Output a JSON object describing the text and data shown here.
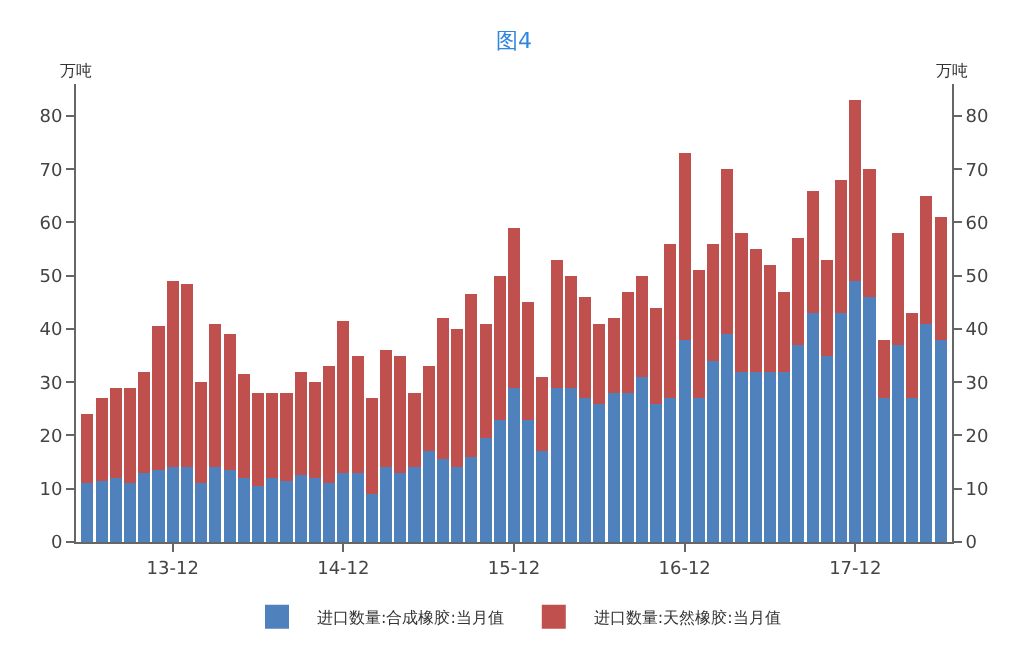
{
  "chart_data": {
    "type": "bar",
    "title": "图4",
    "ylabel": "万吨",
    "y2label": "万吨",
    "categories": [
      null,
      null,
      null,
      null,
      null,
      null,
      "13-12",
      null,
      null,
      null,
      null,
      null,
      null,
      null,
      null,
      null,
      null,
      null,
      "14-12",
      null,
      null,
      null,
      null,
      null,
      null,
      null,
      null,
      null,
      null,
      null,
      "15-12",
      null,
      null,
      null,
      null,
      null,
      null,
      null,
      null,
      null,
      null,
      null,
      "16-12",
      null,
      null,
      null,
      null,
      null,
      null,
      null,
      null,
      null,
      null,
      null,
      "17-12",
      null,
      null,
      null,
      null,
      null,
      null
    ],
    "stacked": true,
    "series": [
      {
        "name": "进口数量:合成橡胶:当月值",
        "color": "#4f81bd",
        "values": [
          11,
          11.5,
          12,
          11,
          13,
          13.5,
          14,
          14,
          11,
          14,
          13.5,
          12,
          10.5,
          12,
          11.5,
          12.5,
          12,
          11,
          13,
          13,
          9,
          14,
          13,
          14,
          17,
          15.5,
          14,
          16,
          19.5,
          23,
          29,
          23,
          17,
          29,
          29,
          27,
          26,
          28,
          28,
          31,
          26,
          27,
          38,
          27,
          34,
          39,
          32,
          32,
          32,
          32,
          37,
          43,
          35,
          43,
          49,
          46,
          27,
          37,
          27,
          41,
          38
        ]
      },
      {
        "name": "进口数量:天然橡胶:当月值",
        "color": "#c0504d",
        "values": [
          13,
          15.5,
          17,
          18,
          19,
          27,
          35,
          34.5,
          19,
          27,
          25.5,
          19.5,
          17.5,
          16,
          16.5,
          19.5,
          18,
          22,
          28.5,
          22,
          18,
          22,
          22,
          14,
          16,
          26.5,
          26,
          30.5,
          21.5,
          27,
          30,
          22,
          14,
          24,
          21,
          19,
          15,
          14,
          19,
          19,
          18,
          29,
          35,
          24,
          22,
          31,
          26,
          23,
          20,
          15,
          20,
          23,
          18,
          25,
          34,
          24,
          11,
          21,
          16,
          24,
          23
        ]
      }
    ],
    "ylim": [
      0,
      86
    ],
    "yticks": [
      0,
      10,
      20,
      30,
      40,
      50,
      60,
      70,
      80
    ],
    "y2lim": [
      0,
      86
    ],
    "y2ticks": [
      0,
      10,
      20,
      30,
      40,
      50,
      60,
      70,
      80
    ],
    "grid": false,
    "legend": "bottom"
  }
}
